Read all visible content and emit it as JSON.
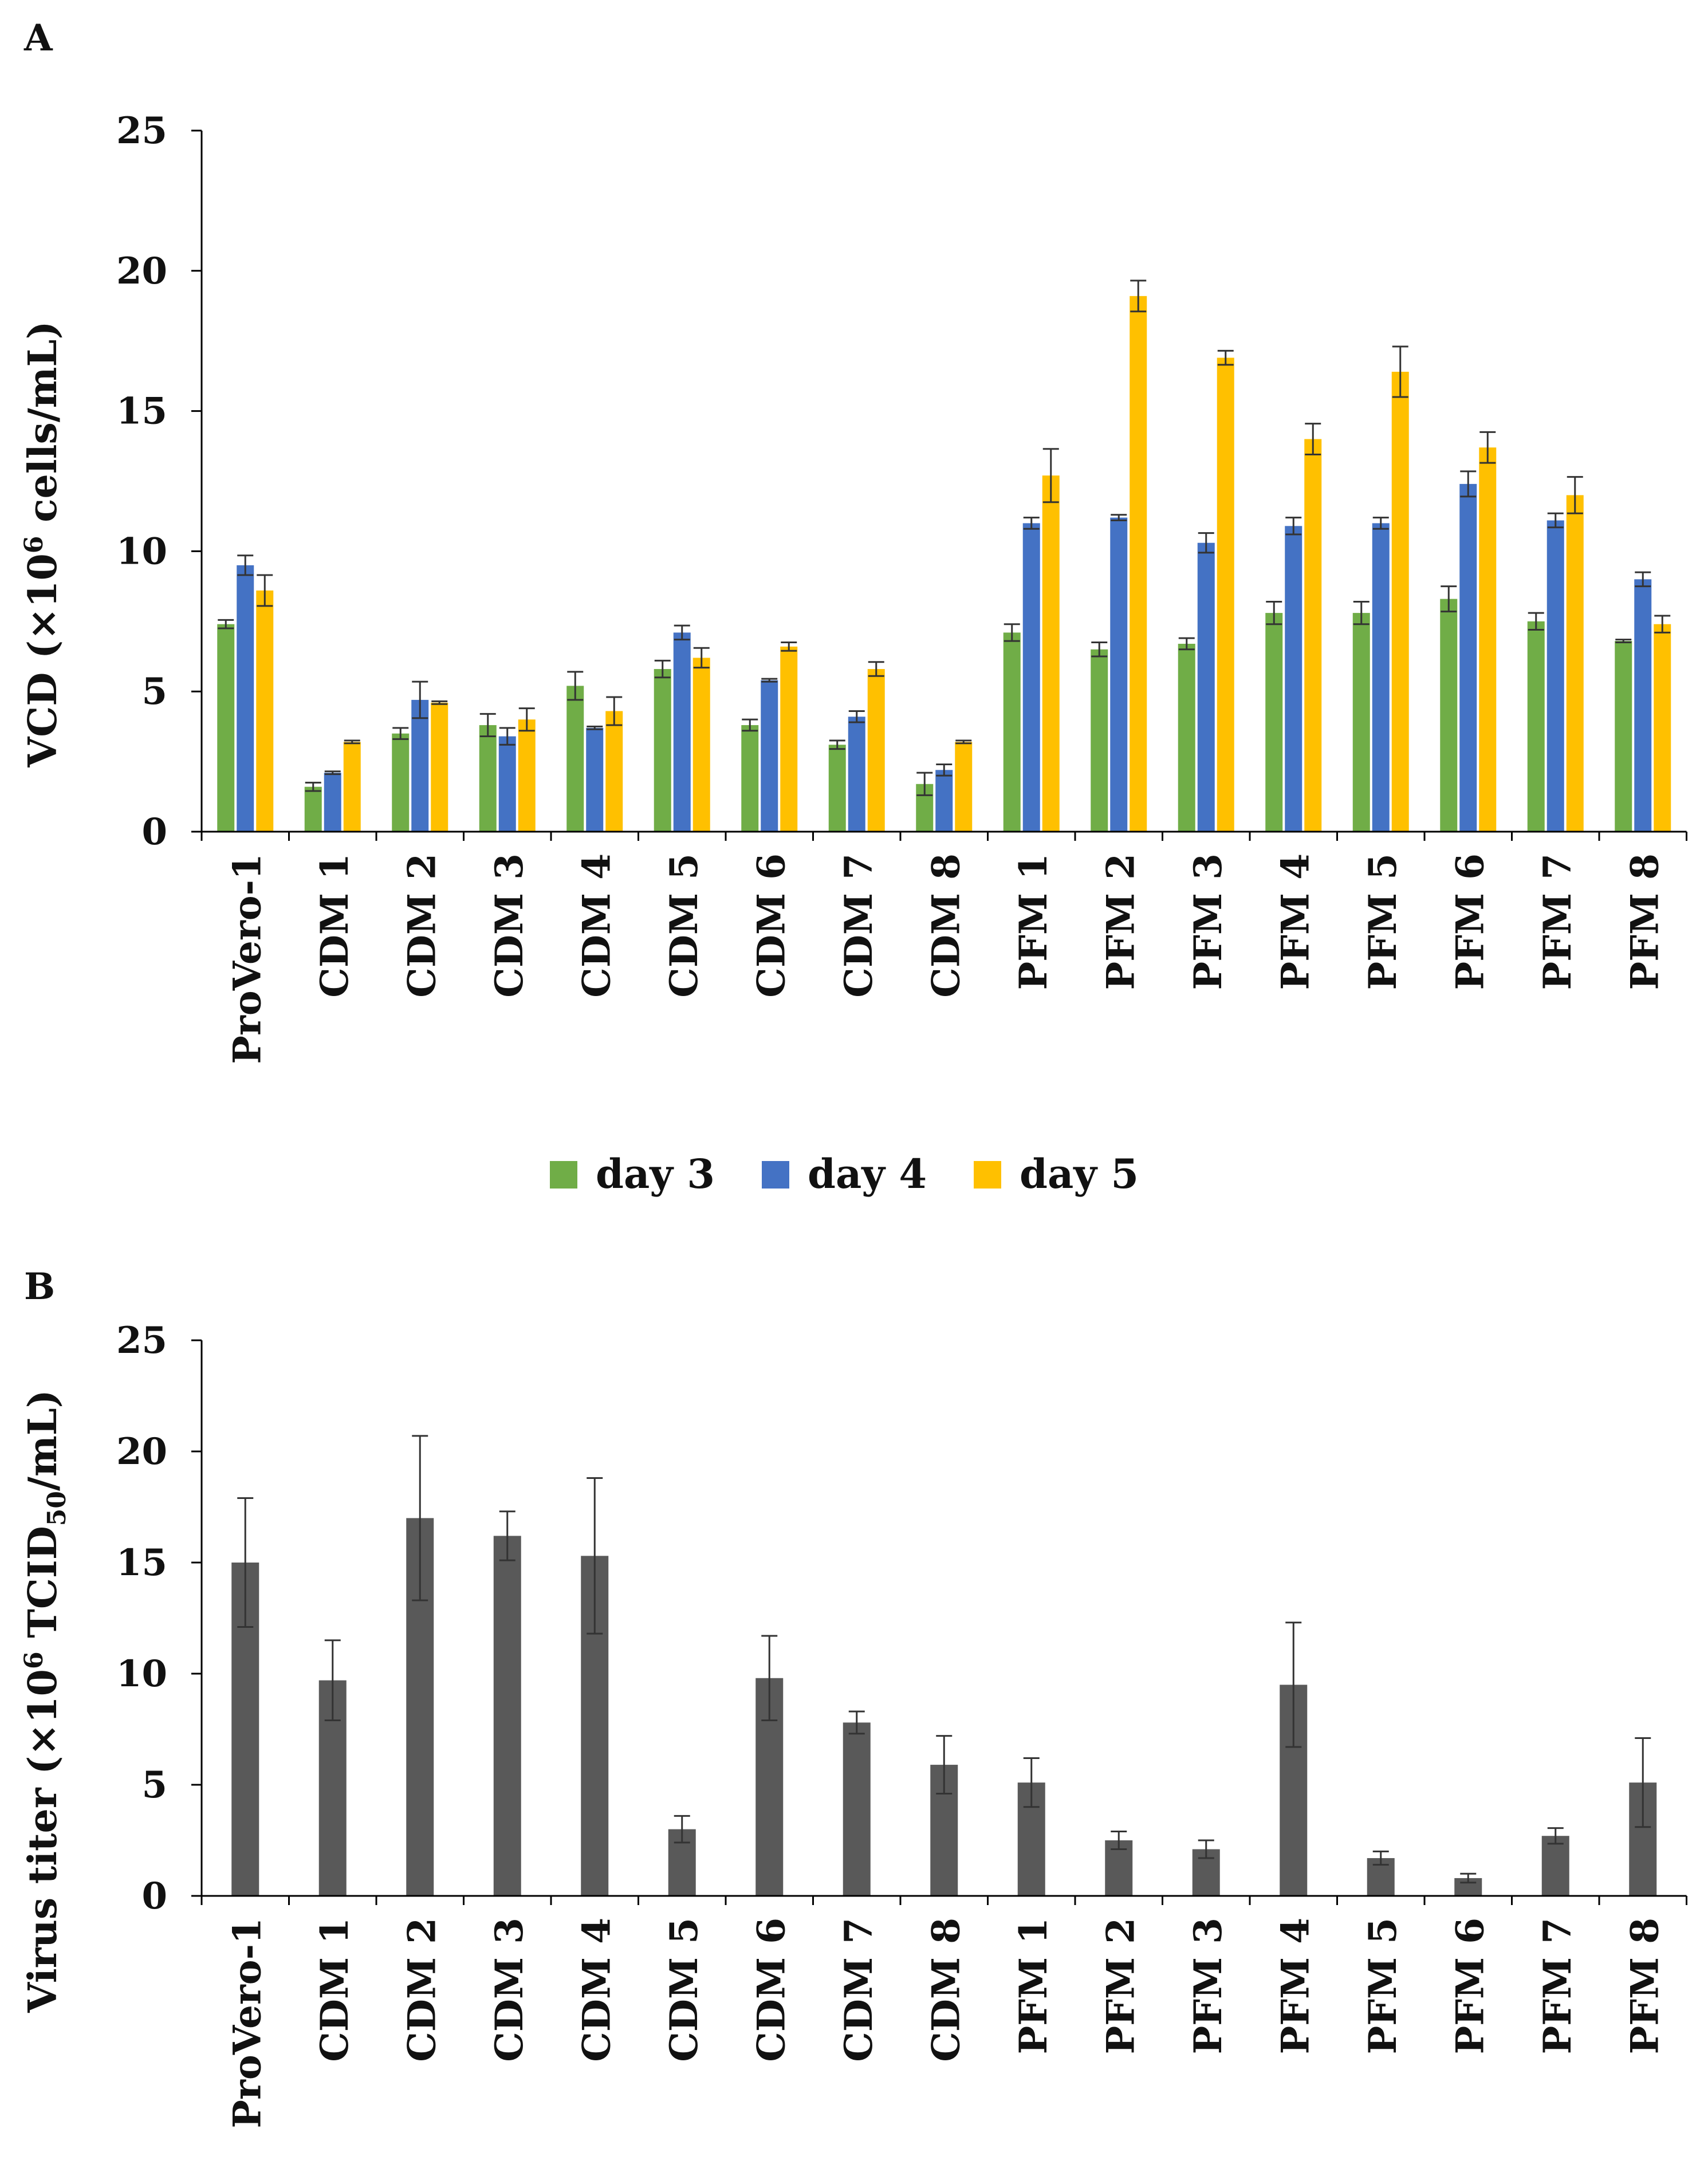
{
  "colors": {
    "day3": "#70ad47",
    "day4": "#4472c4",
    "day5": "#ffc000",
    "titer": "#595959",
    "axis": "#000000",
    "error": "#333333"
  },
  "chart_data": [
    {
      "panel_label": "A",
      "type": "bar",
      "ylabel": "VCD (×10",
      "ylabel_sup": "6",
      "ylabel_rest": " cells/mL)",
      "xlabel": "",
      "ylim": [
        0,
        25
      ],
      "yticks": [
        0,
        5,
        10,
        15,
        20,
        25
      ],
      "grid": false,
      "categories": [
        "ProVero-1",
        "CDM 1",
        "CDM 2",
        "CDM 3",
        "CDM 4",
        "CDM 5",
        "CDM 6",
        "CDM 7",
        "CDM 8",
        "PFM 1",
        "PFM 2",
        "PFM 3",
        "PFM 4",
        "PFM 5",
        "PFM 6",
        "PFM 7",
        "PFM 8"
      ],
      "series": [
        {
          "name": "day 3",
          "color_key": "day3",
          "values": [
            7.4,
            1.6,
            3.5,
            3.8,
            5.2,
            5.8,
            3.8,
            3.1,
            1.7,
            7.1,
            6.5,
            6.7,
            7.8,
            7.8,
            8.3,
            7.5,
            6.8
          ],
          "errors": [
            0.15,
            0.15,
            0.2,
            0.4,
            0.5,
            0.3,
            0.2,
            0.15,
            0.4,
            0.3,
            0.25,
            0.2,
            0.4,
            0.4,
            0.45,
            0.3,
            0.05
          ]
        },
        {
          "name": "day 4",
          "color_key": "day4",
          "values": [
            9.5,
            2.1,
            4.7,
            3.4,
            3.7,
            7.1,
            5.4,
            4.1,
            2.2,
            11.0,
            11.2,
            10.3,
            10.9,
            11.0,
            12.4,
            11.1,
            9.0
          ],
          "errors": [
            0.35,
            0.05,
            0.65,
            0.3,
            0.05,
            0.25,
            0.05,
            0.2,
            0.2,
            0.2,
            0.1,
            0.35,
            0.3,
            0.2,
            0.45,
            0.25,
            0.25
          ]
        },
        {
          "name": "day 5",
          "color_key": "day5",
          "values": [
            8.6,
            3.2,
            4.6,
            4.0,
            4.3,
            6.2,
            6.6,
            5.8,
            3.2,
            12.7,
            19.1,
            16.9,
            14.0,
            16.4,
            13.7,
            12.0,
            7.4
          ],
          "errors": [
            0.55,
            0.05,
            0.05,
            0.4,
            0.5,
            0.35,
            0.15,
            0.25,
            0.05,
            0.95,
            0.55,
            0.25,
            0.55,
            0.9,
            0.55,
            0.65,
            0.3
          ]
        }
      ],
      "legend": {
        "position": "bottom-center",
        "entries": [
          "day 3",
          "day 4",
          "day 5"
        ]
      }
    },
    {
      "panel_label": "B",
      "type": "bar",
      "ylabel": "Virus titer (×10",
      "ylabel_sup": "6",
      "ylabel_mid": " TCID",
      "ylabel_sub": "50",
      "ylabel_rest": "/mL)",
      "xlabel": "",
      "ylim": [
        0,
        25
      ],
      "yticks": [
        0,
        5,
        10,
        15,
        20,
        25
      ],
      "grid": false,
      "categories": [
        "ProVero-1",
        "CDM 1",
        "CDM 2",
        "CDM 3",
        "CDM 4",
        "CDM 5",
        "CDM 6",
        "CDM 7",
        "CDM 8",
        "PFM 1",
        "PFM 2",
        "PFM 3",
        "PFM 4",
        "PFM 5",
        "PFM 6",
        "PFM 7",
        "PFM 8"
      ],
      "series": [
        {
          "name": "Virus titer",
          "color_key": "titer",
          "values": [
            15.0,
            9.7,
            17.0,
            16.2,
            15.3,
            3.0,
            9.8,
            7.8,
            5.9,
            5.1,
            2.5,
            2.1,
            9.5,
            1.7,
            0.8,
            2.7,
            5.1
          ],
          "errors": [
            2.9,
            1.8,
            3.7,
            1.1,
            3.5,
            0.6,
            1.9,
            0.5,
            1.3,
            1.1,
            0.4,
            0.4,
            2.8,
            0.3,
            0.2,
            0.35,
            2.0
          ]
        }
      ]
    }
  ]
}
